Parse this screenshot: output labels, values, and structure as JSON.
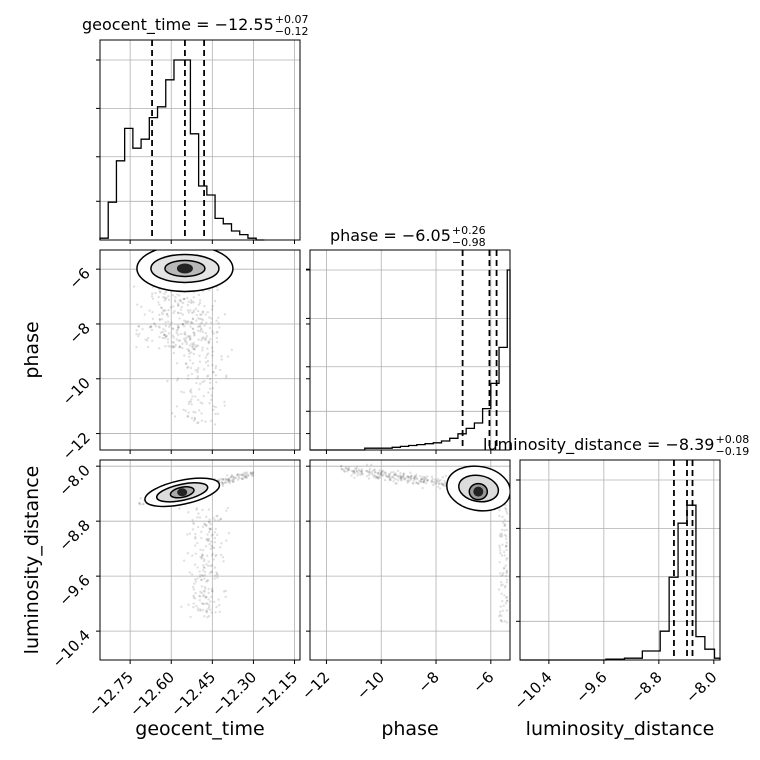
{
  "chart_data": {
    "type": "corner",
    "parameters": [
      "geocent_time",
      "phase",
      "luminosity_distance"
    ],
    "axis_labels": [
      "geocent_time",
      "phase",
      "luminosity_distance"
    ],
    "ranges": [
      [
        -12.86,
        -12.13
      ],
      [
        -12.6,
        -5.3
      ],
      [
        -10.82,
        -7.91
      ]
    ],
    "ticks": [
      {
        "values": [
          -12.75,
          -12.6,
          -12.45,
          -12.3,
          -12.15
        ],
        "labels": [
          "−12.75",
          "−12.60",
          "−12.45",
          "−12.30",
          "−12.15"
        ]
      },
      {
        "values": [
          -12,
          -10,
          -8,
          -6
        ],
        "labels": [
          "−12",
          "−10",
          "−8",
          "−6"
        ]
      },
      {
        "values": [
          -10.4,
          -9.6,
          -8.8,
          -8.0
        ],
        "labels": [
          "−10.4",
          "−9.6",
          "−8.8",
          "−8.0"
        ]
      }
    ],
    "titles": [
      {
        "param": "geocent_time",
        "value": "−12.55",
        "plus": "+0.07",
        "minus": "−0.12"
      },
      {
        "param": "phase",
        "value": "−6.05",
        "plus": "+0.26",
        "minus": "−0.98"
      },
      {
        "param": "luminosity_distance",
        "value": "−8.39",
        "plus": "+0.08",
        "minus": "−0.19"
      }
    ],
    "quantiles": [
      [
        -12.67,
        -12.55,
        -12.48
      ],
      [
        -7.03,
        -6.05,
        -5.79
      ],
      [
        -8.58,
        -8.39,
        -8.31
      ]
    ],
    "histograms": [
      {
        "edges": [
          -12.86,
          -12.83,
          -12.8,
          -12.77,
          -12.74,
          -12.71,
          -12.68,
          -12.65,
          -12.62,
          -12.59,
          -12.56,
          -12.53,
          -12.5,
          -12.47,
          -12.44,
          -12.41,
          -12.38,
          -12.35,
          -12.32,
          -12.29,
          -12.26
        ],
        "counts": [
          0.01,
          0.21,
          0.44,
          0.62,
          0.51,
          0.56,
          0.68,
          0.74,
          0.89,
          1.0,
          1.0,
          0.59,
          0.3,
          0.25,
          0.12,
          0.09,
          0.05,
          0.03,
          0.01,
          0.0
        ]
      },
      {
        "edges": [
          -12.6,
          -11.6,
          -10.6,
          -9.6,
          -9.3,
          -9.0,
          -8.7,
          -8.4,
          -8.1,
          -7.8,
          -7.5,
          -7.2,
          -6.9,
          -6.6,
          -6.3,
          -6.0,
          -5.7,
          -5.4,
          -5.3
        ],
        "counts": [
          0.0,
          0.0,
          0.01,
          0.015,
          0.02,
          0.025,
          0.03,
          0.035,
          0.04,
          0.05,
          0.065,
          0.09,
          0.12,
          0.15,
          0.23,
          0.37,
          0.57,
          1.0
        ]
      },
      {
        "edges": [
          -10.82,
          -10.1,
          -9.83,
          -9.57,
          -9.3,
          -9.04,
          -8.78,
          -8.65,
          -8.52,
          -8.39,
          -8.26,
          -8.13,
          -7.99,
          -7.91
        ],
        "counts": [
          0.0,
          0.0,
          0.0,
          0.005,
          0.01,
          0.05,
          0.16,
          0.46,
          0.76,
          0.86,
          0.13,
          0.06,
          0.01
        ]
      }
    ],
    "panels_2d": [
      {
        "x_param": "geocent_time",
        "y_param": "phase",
        "mode_x": -12.55,
        "mode_y": -5.9
      },
      {
        "x_param": "geocent_time",
        "y_param": "luminosity_distance",
        "mode_x": -12.56,
        "mode_y": -8.38
      },
      {
        "x_param": "phase",
        "y_param": "luminosity_distance",
        "mode_x": -5.8,
        "mode_y": -8.37
      }
    ],
    "grid": true,
    "line_color": "#000000",
    "sample_color": "#555555"
  }
}
